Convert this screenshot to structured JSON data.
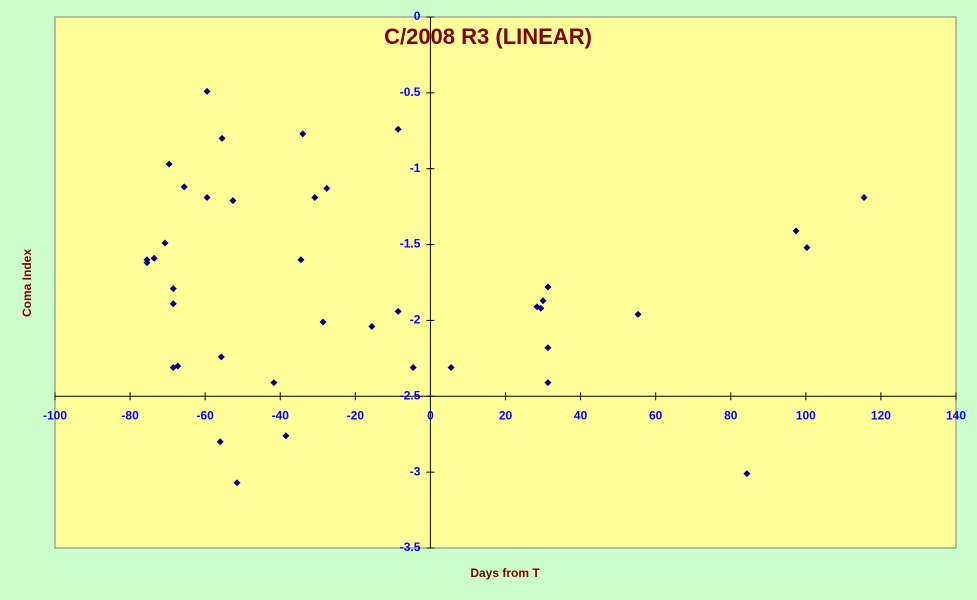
{
  "chart_data": {
    "type": "scatter",
    "title": "C/2008 R3 (LINEAR)",
    "x_label": "Days from T",
    "y_label": "Coma Index",
    "x": [
      -59.5,
      -55.5,
      -34,
      -8.6,
      -69.6,
      -65.6,
      -59.5,
      -52.6,
      -30.8,
      -27.6,
      -70.7,
      -73.6,
      -75.5,
      -75.5,
      -34.5,
      -68.5,
      -68.5,
      -28.6,
      -15.6,
      -8.6,
      -55.7,
      -68.5,
      -67.3,
      -41.7,
      -4.6,
      5.5,
      -56,
      -38.5,
      -51.5,
      28.4,
      29.4,
      30,
      31.3,
      31.3,
      31.3,
      55.3,
      97.4,
      100.3,
      115.5,
      84.3
    ],
    "values": [
      -0.49,
      -0.8,
      -0.77,
      -0.74,
      -0.97,
      -1.12,
      -1.19,
      -1.21,
      -1.19,
      -1.13,
      -1.49,
      -1.59,
      -1.6,
      -1.62,
      -1.6,
      -1.79,
      -1.89,
      -2.01,
      -2.04,
      -1.94,
      -2.24,
      -2.31,
      -2.3,
      -2.41,
      -2.31,
      -2.31,
      -2.8,
      -2.76,
      -3.07,
      -1.91,
      -1.92,
      -1.87,
      -1.78,
      -2.18,
      -2.41,
      -1.96,
      -1.41,
      -1.52,
      -1.19,
      -3.01
    ],
    "color": "#000080",
    "xlim": [
      -100,
      140
    ],
    "xticks": [
      -100,
      -80,
      -60,
      -40,
      -20,
      0,
      20,
      40,
      60,
      80,
      100,
      120,
      140
    ],
    "ylim": [
      -3.5,
      0
    ],
    "yticks": [
      0,
      -0.5,
      -1,
      -1.5,
      -2,
      -2.5,
      -3,
      -3.5
    ]
  }
}
